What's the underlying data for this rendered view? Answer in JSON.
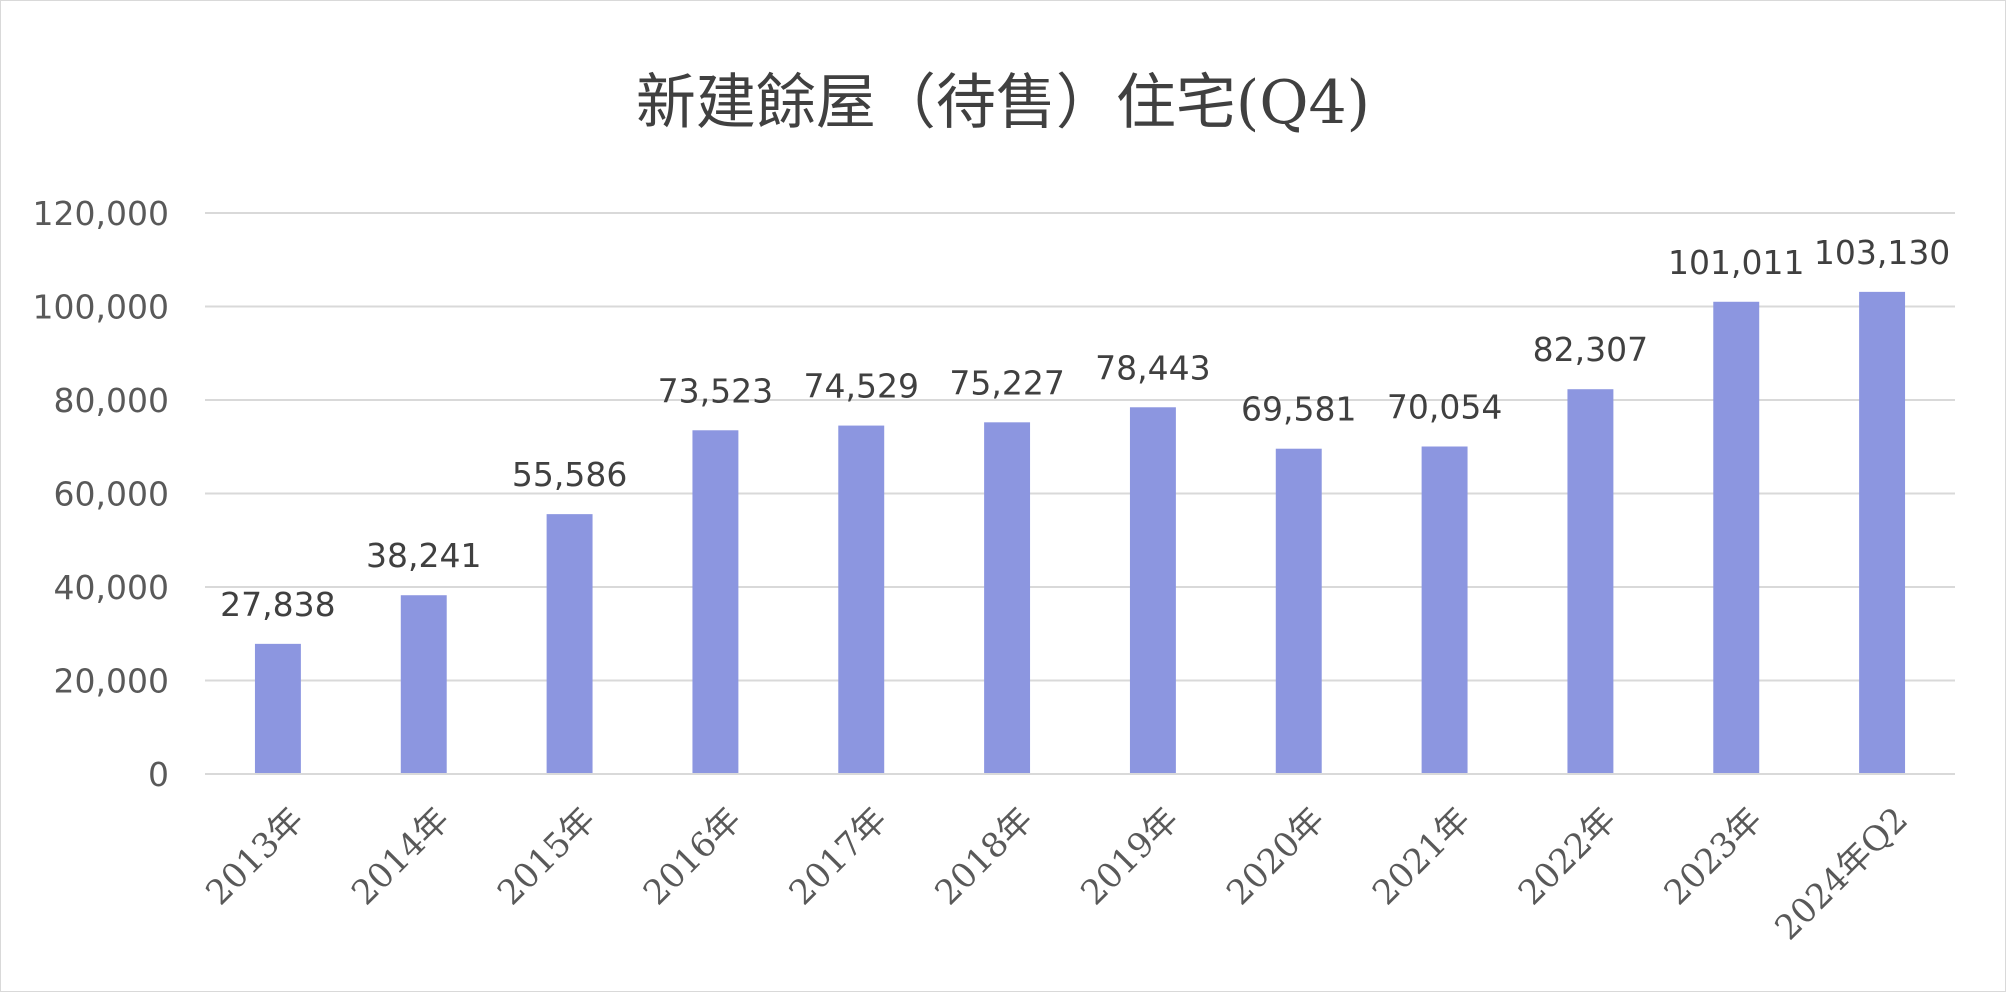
{
  "chart_data": {
    "type": "bar",
    "title": "新建餘屋（待售）住宅(Q4)",
    "xlabel": "",
    "ylabel": "",
    "ylim": [
      0,
      120000
    ],
    "yticks": [
      0,
      20000,
      40000,
      60000,
      80000,
      100000,
      120000
    ],
    "ytick_labels": [
      "0",
      "20,000",
      "40,000",
      "60,000",
      "80,000",
      "100,000",
      "120,000"
    ],
    "categories": [
      "2013年",
      "2014年",
      "2015年",
      "2016年",
      "2017年",
      "2018年",
      "2019年",
      "2020年",
      "2021年",
      "2022年",
      "2023年",
      "2024年Q2"
    ],
    "values": [
      27838,
      38241,
      55586,
      73523,
      74529,
      75227,
      78443,
      69581,
      70054,
      82307,
      101011,
      103130
    ],
    "data_labels": [
      "27,838",
      "38,241",
      "55,586",
      "73,523",
      "74,529",
      "75,227",
      "78,443",
      "69,581",
      "70,054",
      "82,307",
      "101,011",
      "103,130"
    ],
    "bar_color": "#8c96e0",
    "grid": true,
    "legend": "none"
  }
}
